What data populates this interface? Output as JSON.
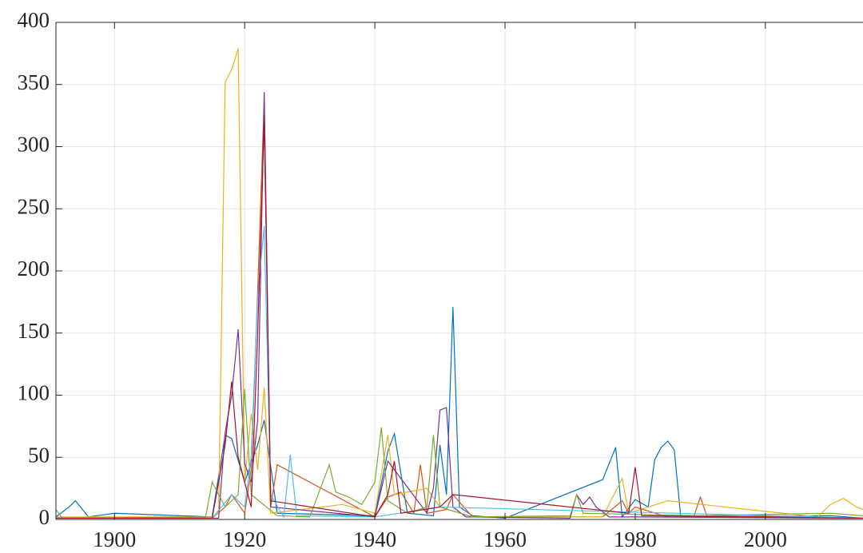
{
  "chart_data": {
    "type": "line",
    "xlim": [
      1891,
      2015
    ],
    "xticks": [
      1900,
      1920,
      1940,
      1960,
      1980,
      2000
    ],
    "ylim": [
      0,
      400
    ],
    "yticks": [
      0,
      50,
      100,
      150,
      200,
      250,
      300,
      350,
      400
    ],
    "grid": true,
    "series": [
      {
        "color": "#0072BD",
        "x": [
          1891,
          1893,
          1894,
          1896,
          1900,
          1915,
          1917,
          1918,
          1920,
          1922,
          1923,
          1925,
          1940,
          1942,
          1943,
          1945,
          1949,
          1950,
          1951,
          1952,
          1953,
          1955,
          1960,
          1975,
          1976,
          1977,
          1978,
          1980,
          1982,
          1983,
          1984,
          1985,
          1986,
          1987,
          1990,
          2010,
          2015
        ],
        "values": [
          2,
          10,
          15,
          2,
          5,
          2,
          68,
          65,
          30,
          60,
          80,
          5,
          3,
          55,
          69,
          5,
          3,
          60,
          20,
          171,
          10,
          3,
          1,
          32,
          45,
          58,
          2,
          16,
          10,
          48,
          58,
          63,
          56,
          2,
          2,
          3,
          1
        ]
      },
      {
        "color": "#D95319",
        "x": [
          1891,
          1915,
          1917,
          1918,
          1920,
          1921,
          1922,
          1923,
          1924,
          1925,
          1940,
          1942,
          1944,
          1946,
          1947,
          1948,
          1951,
          1952,
          1955,
          1975,
          1978,
          1979,
          1980,
          1985,
          1989,
          1990,
          1991,
          2015
        ],
        "values": [
          1,
          1,
          10,
          20,
          5,
          40,
          185,
          338,
          10,
          44,
          2,
          18,
          22,
          5,
          44,
          5,
          8,
          20,
          2,
          2,
          15,
          5,
          10,
          2,
          2,
          18,
          3,
          1
        ]
      },
      {
        "color": "#EDB120",
        "x": [
          1891,
          1915,
          1916,
          1917,
          1918,
          1919,
          1920,
          1921,
          1922,
          1923,
          1924,
          1935,
          1940,
          1942,
          1943,
          1948,
          1950,
          1955,
          1975,
          1978,
          1979,
          1985,
          2008,
          2010,
          2012,
          2014,
          2015
        ],
        "values": [
          2,
          2,
          5,
          352,
          362,
          379,
          30,
          85,
          40,
          106,
          5,
          12,
          5,
          68,
          20,
          25,
          10,
          2,
          2,
          33,
          5,
          15,
          2,
          12,
          17,
          10,
          8
        ]
      },
      {
        "color": "#7E2F8E",
        "x": [
          1891,
          1916,
          1917,
          1918,
          1919,
          1920,
          1921,
          1922,
          1923,
          1924,
          1940,
          1942,
          1948,
          1949,
          1950,
          1951,
          1952,
          1954,
          1970,
          1971,
          1972,
          1973,
          1974,
          1976,
          1980,
          2015
        ],
        "values": [
          1,
          1,
          70,
          100,
          153,
          45,
          30,
          80,
          344,
          10,
          2,
          47,
          5,
          25,
          88,
          90,
          10,
          2,
          1,
          20,
          12,
          18,
          10,
          2,
          2,
          1
        ]
      },
      {
        "color": "#77AC30",
        "x": [
          1891,
          1892,
          1914,
          1915,
          1917,
          1919,
          1920,
          1921,
          1925,
          1930,
          1933,
          1934,
          1936,
          1938,
          1940,
          1941,
          1942,
          1945,
          1948,
          1949,
          1950,
          1955,
          1970,
          1971,
          1972,
          1990,
          2010,
          2015
        ],
        "values": [
          8,
          1,
          2,
          30,
          10,
          20,
          105,
          20,
          3,
          2,
          44,
          22,
          18,
          12,
          30,
          74,
          15,
          5,
          10,
          68,
          10,
          2,
          3,
          20,
          5,
          3,
          5,
          3
        ]
      },
      {
        "color": "#4DBEEE",
        "x": [
          1891,
          1915,
          1918,
          1920,
          1921,
          1922,
          1923,
          1924,
          1926,
          1927,
          1928,
          1940,
          1950,
          2015
        ],
        "values": [
          1,
          1,
          20,
          10,
          50,
          180,
          236,
          20,
          2,
          52,
          3,
          2,
          10,
          1
        ]
      },
      {
        "color": "#A2142F",
        "x": [
          1891,
          1915,
          1916,
          1917,
          1918,
          1919,
          1921,
          1922,
          1923,
          1924,
          1940,
          1942,
          1943,
          1944,
          1950,
          1952,
          1979,
          1980,
          1981,
          2015
        ],
        "values": [
          1,
          1,
          30,
          60,
          111,
          50,
          10,
          150,
          320,
          15,
          2,
          20,
          47,
          5,
          10,
          20,
          5,
          42,
          3,
          1
        ]
      }
    ]
  }
}
